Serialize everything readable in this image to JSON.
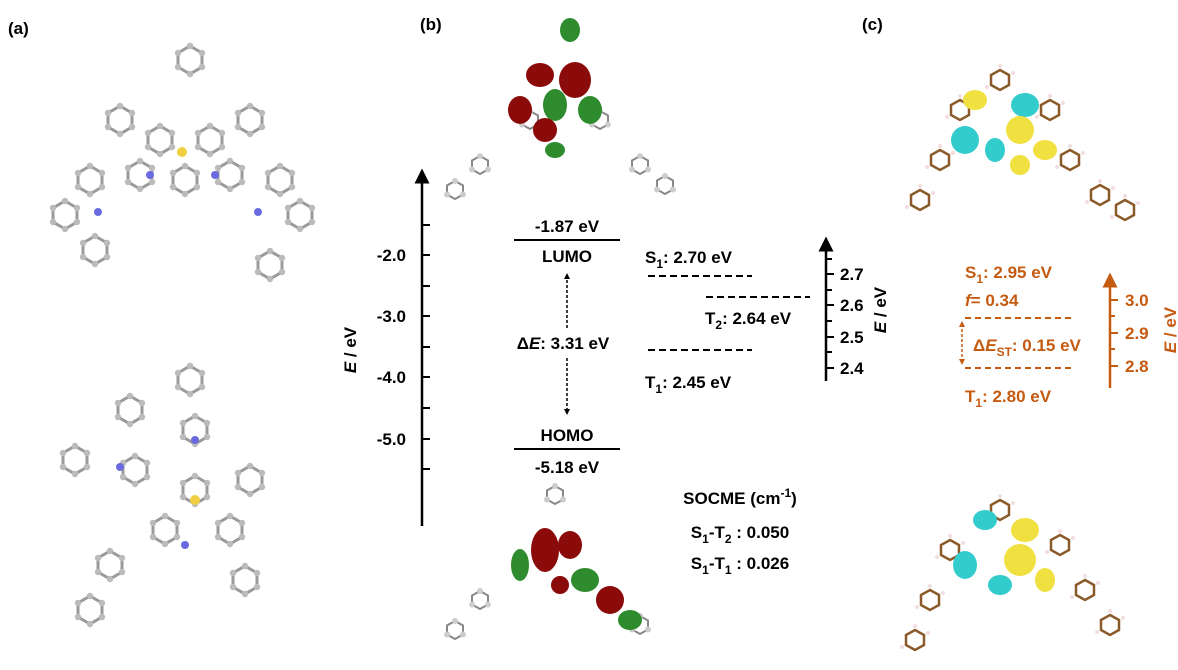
{
  "panel_a": {
    "label": "(a)"
  },
  "panel_b": {
    "label": "(b)",
    "axis": {
      "title_symbol": "E",
      "title_unit": " / eV",
      "ticks": [
        "-2.0",
        "-3.0",
        "-4.0",
        "-5.0"
      ]
    },
    "lumo": {
      "energy": "-1.87 eV",
      "name": "LUMO"
    },
    "gap": {
      "delta": "Δ",
      "symbol": "E",
      "text": ": 3.31 eV"
    },
    "homo": {
      "name": "HOMO",
      "energy": "-5.18 eV"
    },
    "states": [
      {
        "symbol": "S",
        "sub": "1",
        "text": ": 2.70 eV"
      },
      {
        "symbol": "T",
        "sub": "2",
        "text": ": 2.64 eV"
      },
      {
        "symbol": "T",
        "sub": "1",
        "text": ": 2.45 eV"
      }
    ],
    "state_axis": {
      "title_symbol": "E",
      "title_unit": " / eV",
      "ticks": [
        "2.7",
        "2.6",
        "2.5",
        "2.4"
      ]
    },
    "socme": {
      "title": "SOCME (cm",
      "title_sup": "-1",
      "title_end": ")",
      "rows": [
        {
          "a": "S",
          "a_sub": "1",
          "dash": "-",
          "b": "T",
          "b_sub": "2",
          "text": " : 0.050"
        },
        {
          "a": "S",
          "a_sub": "1",
          "dash": "-",
          "b": "T",
          "b_sub": "1",
          "text": " : 0.026"
        }
      ]
    }
  },
  "panel_c": {
    "label": "(c)",
    "s1": {
      "symbol": "S",
      "sub": "1",
      "text": ": 2.95 eV"
    },
    "f": {
      "symbol": "f",
      "text": "= 0.34"
    },
    "gap": {
      "delta": "Δ",
      "symbol": "E",
      "sub": "ST",
      "text": ":  0.15 eV"
    },
    "t1": {
      "symbol": "T",
      "sub": "1",
      "text": ": 2.80 eV"
    },
    "axis": {
      "title_symbol": "E",
      "title_unit": " / eV",
      "ticks": [
        "3.0",
        "2.9",
        "2.8"
      ]
    }
  }
}
